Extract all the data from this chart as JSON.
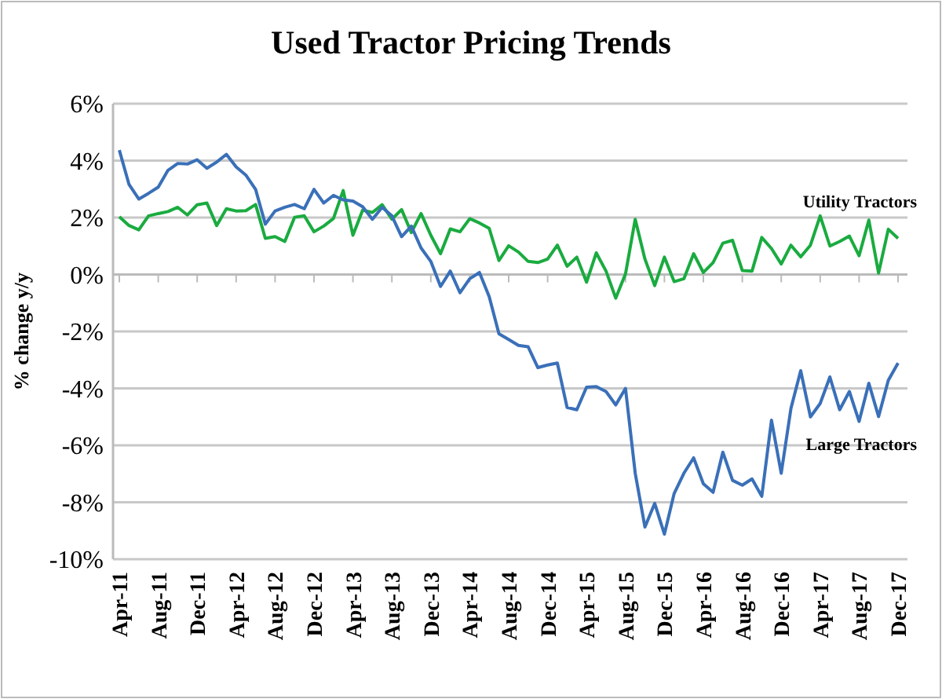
{
  "chart_data": {
    "type": "line",
    "title": "Used Tractor Pricing Trends",
    "ylabel": "% change y/y",
    "categories": [
      "Apr-11",
      null,
      null,
      null,
      "Aug-11",
      null,
      null,
      null,
      "Dec-11",
      null,
      null,
      null,
      "Apr-12",
      null,
      null,
      null,
      "Aug-12",
      null,
      null,
      null,
      "Dec-12",
      null,
      null,
      null,
      "Apr-13",
      null,
      null,
      null,
      "Aug-13",
      null,
      null,
      null,
      "Dec-13",
      null,
      null,
      null,
      "Apr-14",
      null,
      null,
      null,
      "Aug-14",
      null,
      null,
      null,
      "Dec-14",
      null,
      null,
      null,
      "Apr-15",
      null,
      null,
      null,
      "Aug-15",
      null,
      null,
      null,
      "Dec-15",
      null,
      null,
      null,
      "Apr-16",
      null,
      null,
      null,
      "Aug-16",
      null,
      null,
      null,
      "Dec-16",
      null,
      null,
      null,
      "Apr-17",
      null,
      null,
      null,
      "Aug-17",
      null,
      null,
      null,
      "Dec-17"
    ],
    "series": [
      {
        "name": "Utility Tractors",
        "color": "#1aab40",
        "values": [
          2.03,
          1.72,
          1.57,
          2.06,
          2.14,
          2.21,
          2.36,
          2.09,
          2.45,
          2.51,
          1.72,
          2.31,
          2.23,
          2.24,
          2.46,
          1.27,
          1.33,
          1.16,
          2.01,
          2.06,
          1.5,
          1.7,
          1.97,
          2.95,
          1.38,
          2.26,
          2.18,
          2.45,
          1.94,
          2.28,
          1.47,
          2.14,
          1.38,
          0.73,
          1.6,
          1.5,
          1.96,
          1.81,
          1.62,
          0.49,
          1.01,
          0.79,
          0.46,
          0.42,
          0.54,
          1.03,
          0.29,
          0.61,
          -0.27,
          0.76,
          0.12,
          -0.83,
          0.02,
          1.94,
          0.54,
          -0.39,
          0.61,
          -0.25,
          -0.15,
          0.73,
          0.07,
          0.42,
          1.1,
          1.2,
          0.14,
          0.12,
          1.3,
          0.91,
          0.37,
          1.03,
          0.62,
          1.03,
          2.06,
          1.0,
          1.16,
          1.35,
          0.66,
          1.91,
          0.05,
          1.59,
          1.27
        ]
      },
      {
        "name": "Large Tractors",
        "color": "#3a70b8",
        "values": [
          4.37,
          3.16,
          2.65,
          2.85,
          3.07,
          3.66,
          3.9,
          3.88,
          4.03,
          3.73,
          3.95,
          4.22,
          3.78,
          3.49,
          2.99,
          1.77,
          2.23,
          2.36,
          2.46,
          2.31,
          2.99,
          2.51,
          2.78,
          2.62,
          2.58,
          2.38,
          1.94,
          2.36,
          2.06,
          1.33,
          1.7,
          0.93,
          0.46,
          -0.42,
          0.12,
          -0.64,
          -0.15,
          0.07,
          -0.78,
          -2.08,
          -2.28,
          -2.49,
          -2.54,
          -3.27,
          -3.18,
          -3.11,
          -4.67,
          -4.75,
          -3.96,
          -3.94,
          -4.11,
          -4.58,
          -4.0,
          -6.98,
          -8.87,
          -8.04,
          -9.12,
          -7.69,
          -6.98,
          -6.44,
          -7.35,
          -7.65,
          -6.24,
          -7.23,
          -7.4,
          -7.18,
          -7.79,
          -5.12,
          -6.98,
          -4.7,
          -3.38,
          -5.0,
          -4.53,
          -3.6,
          -4.75,
          -4.11,
          -5.16,
          -3.82,
          -4.99,
          -3.72,
          -3.11
        ]
      }
    ],
    "ylim": [
      -10,
      6
    ],
    "yticks": [
      {
        "value": -10,
        "label": "-10%"
      },
      {
        "value": -8,
        "label": "-8%"
      },
      {
        "value": -6,
        "label": "-6%"
      },
      {
        "value": -4,
        "label": "-4%"
      },
      {
        "value": -2,
        "label": "-2%"
      },
      {
        "value": 0,
        "label": "0%"
      },
      {
        "value": 2,
        "label": "2%"
      },
      {
        "value": 4,
        "label": "4%"
      },
      {
        "value": 6,
        "label": "6%"
      }
    ],
    "grid": "y",
    "marker": "none",
    "line_style": "solid"
  }
}
